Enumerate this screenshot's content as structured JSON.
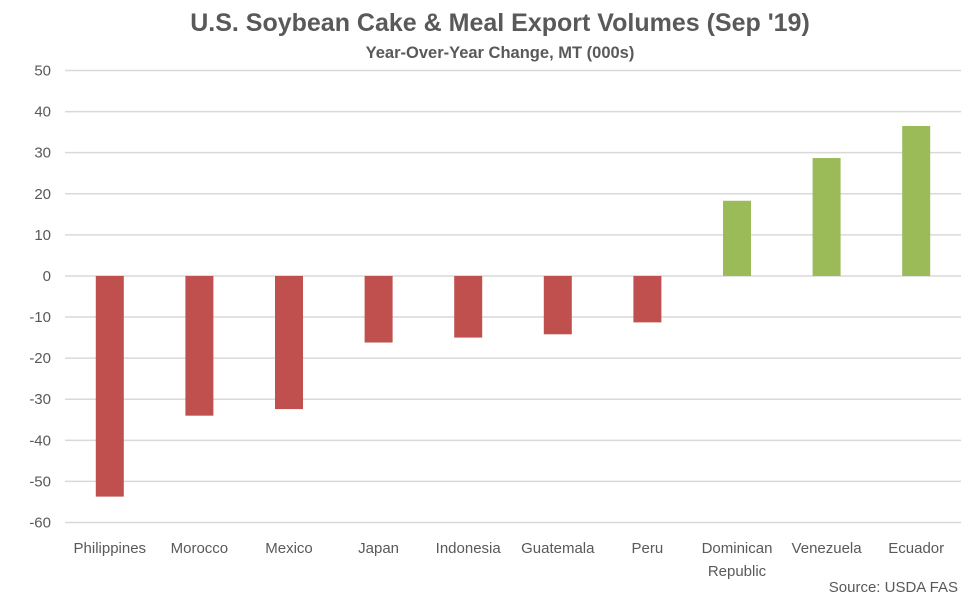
{
  "chart_data": {
    "type": "bar",
    "title": "U.S. Soybean Cake & Meal Export Volumes (Sep '19)",
    "subtitle": "Year-Over-Year Change, MT (000s)",
    "xlabel": "",
    "ylabel": "",
    "categories": [
      "Philippines",
      "Morocco",
      "Mexico",
      "Japan",
      "Indonesia",
      "Guatemala",
      "Peru",
      "Dominican Republic",
      "Venezuela",
      "Ecuador"
    ],
    "category_lines": [
      [
        "Philippines"
      ],
      [
        "Morocco"
      ],
      [
        "Mexico"
      ],
      [
        "Japan"
      ],
      [
        "Indonesia"
      ],
      [
        "Guatemala"
      ],
      [
        "Peru"
      ],
      [
        "Dominican",
        "Republic"
      ],
      [
        "Venezuela"
      ],
      [
        "Ecuador"
      ]
    ],
    "values": [
      -53.7,
      -34.0,
      -32.4,
      -16.2,
      -15.0,
      -14.2,
      -11.3,
      18.3,
      28.7,
      36.5
    ],
    "ylim": [
      -60,
      50
    ],
    "yticks": [
      50,
      40,
      30,
      20,
      10,
      0,
      -10,
      -20,
      -30,
      -40,
      -50,
      -60
    ],
    "grid": true,
    "legend": "none",
    "colors": {
      "negative": "#C0504D",
      "positive": "#9BBB59"
    },
    "source": "Source: USDA FAS"
  }
}
